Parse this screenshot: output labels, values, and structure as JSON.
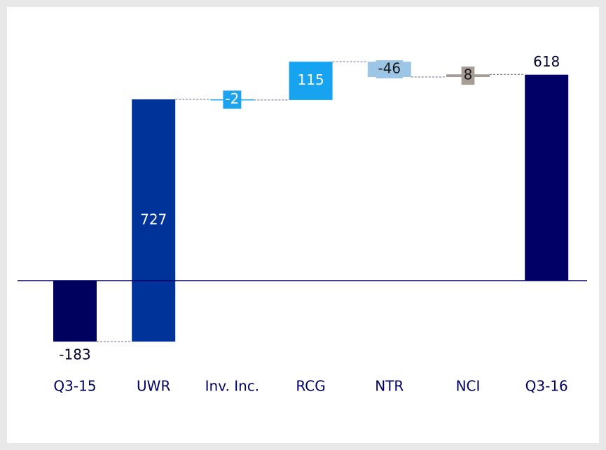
{
  "chart_data": {
    "type": "waterfall",
    "categories": [
      "Q3-15",
      "UWR",
      "Inv. Inc.",
      "RCG",
      "NTR",
      "NCI",
      "Q3-16"
    ],
    "values": [
      -183,
      727,
      -2,
      115,
      -46,
      8,
      618
    ],
    "totals": [
      true,
      false,
      false,
      false,
      false,
      false,
      true
    ],
    "colors": [
      "#00005f",
      "#003399",
      "#1ba3ee",
      "#18a3f0",
      "#9cc5e6",
      "#a69e96",
      "#000066"
    ]
  }
}
